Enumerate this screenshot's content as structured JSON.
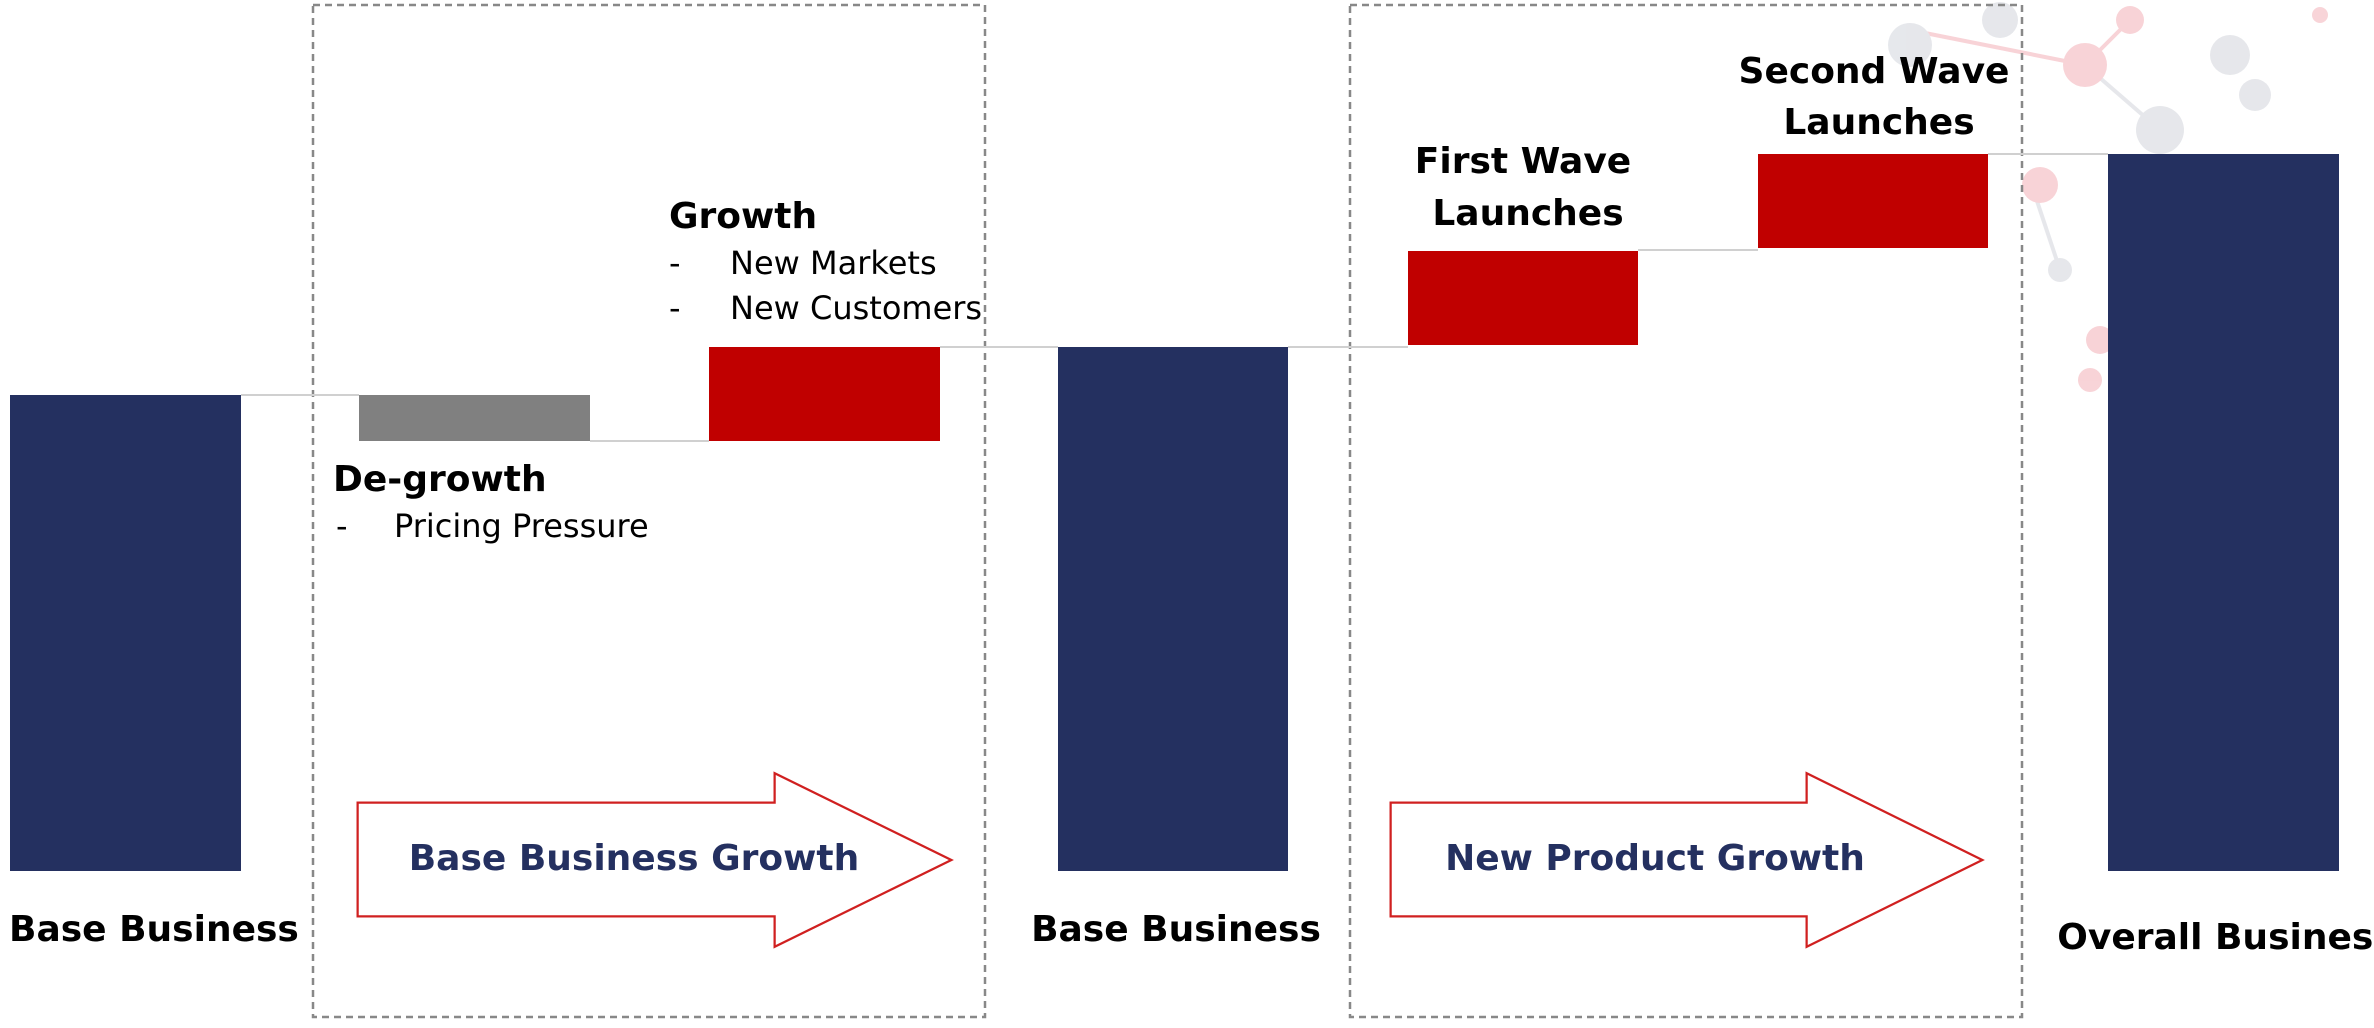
{
  "columns": [
    {
      "label": "Base Business"
    },
    {
      "title": "De-growth",
      "bullets": [
        "Pricing Pressure"
      ]
    },
    {
      "title": "Growth",
      "bullets": [
        "New Markets",
        "New Customers"
      ]
    },
    {
      "label": "Base Business"
    },
    {
      "label_lines": [
        "First Wave",
        "Launches"
      ]
    },
    {
      "label_lines": [
        "Second Wave",
        "Launches"
      ]
    },
    {
      "label": "Overall Business"
    }
  ],
  "arrows": [
    "Base Business Growth",
    "New Product Growth"
  ]
}
